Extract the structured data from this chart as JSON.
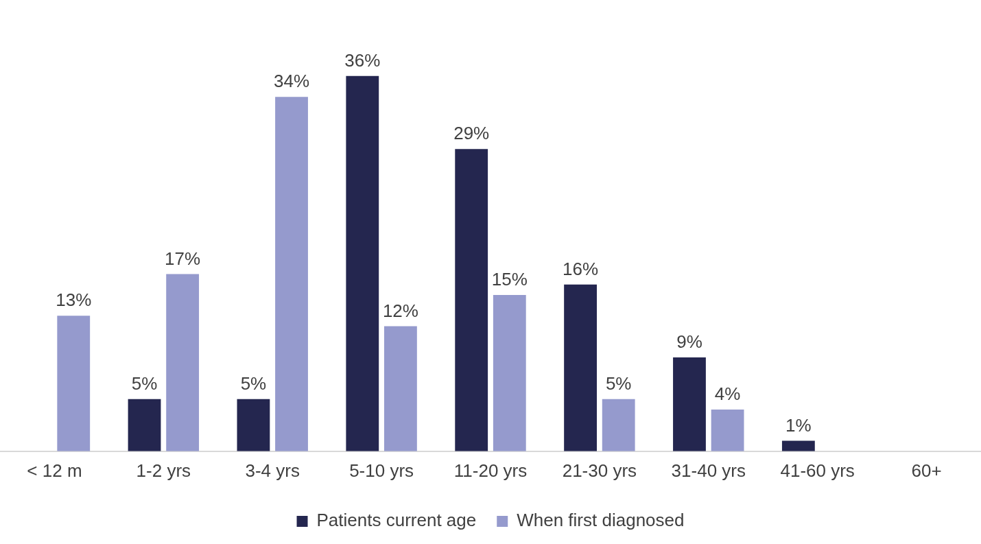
{
  "chart_data": {
    "type": "bar",
    "categories": [
      "< 12 m",
      "1-2 yrs",
      "3-4 yrs",
      "5-10 yrs",
      "11-20 yrs",
      "21-30 yrs",
      "31-40 yrs",
      "41-60 yrs",
      "60+"
    ],
    "series": [
      {
        "name": "Patients current age",
        "color": "#24264f",
        "values": [
          null,
          5,
          5,
          36,
          29,
          16,
          9,
          1,
          null
        ],
        "value_labels": [
          null,
          "5%",
          "5%",
          "36%",
          "29%",
          "16%",
          "9%",
          "1%",
          null
        ]
      },
      {
        "name": "When first diagnosed",
        "color": "#959acd",
        "values": [
          13,
          17,
          34,
          12,
          15,
          5,
          4,
          null,
          null
        ],
        "value_labels": [
          "13%",
          "17%",
          "34%",
          "12%",
          "15%",
          "5%",
          "4%",
          null,
          null
        ]
      }
    ],
    "grid": false,
    "legend": "bottom",
    "tick_labels": "x"
  }
}
